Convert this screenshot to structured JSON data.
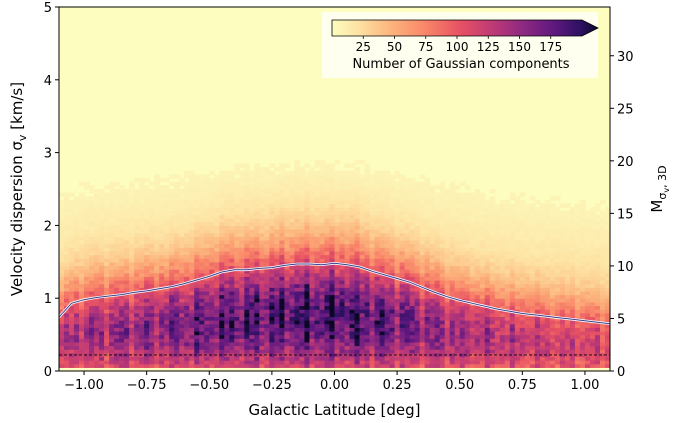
{
  "chart_data": {
    "type": "heatmap",
    "title": "",
    "xlabel": "Galactic Latitude [deg]",
    "ylabel": "Velocity dispersion σ_v [km/s]",
    "ylabel_main": "Velocity dispersion σ",
    "ylabel_sub": "v",
    "ylabel_unit": " [km/s]",
    "y2label": "M_σv,3D",
    "y2label_main": "M",
    "y2label_sub": "σ",
    "y2label_subsub": "v",
    "y2label_sub2": ", 3D",
    "xlim": [
      -1.1,
      1.1
    ],
    "ylim": [
      0,
      5
    ],
    "y2lim": [
      0,
      34.64
    ],
    "xticks": [
      -1.0,
      -0.75,
      -0.5,
      -0.25,
      0.0,
      0.25,
      0.5,
      0.75,
      1.0
    ],
    "xtick_labels": [
      "−1.00",
      "−0.75",
      "−0.50",
      "−0.25",
      "0.00",
      "0.25",
      "0.50",
      "0.75",
      "1.00"
    ],
    "yticks": [
      0,
      1,
      2,
      3,
      4,
      5
    ],
    "ytick_labels": [
      "0",
      "1",
      "2",
      "3",
      "4",
      "5"
    ],
    "y2ticks": [
      0,
      5,
      10,
      15,
      20,
      25,
      30
    ],
    "y2tick_labels": [
      "0",
      "5",
      "10",
      "15",
      "20",
      "25",
      "30"
    ],
    "colormap": "magma_r",
    "colorbar": {
      "label": "Number of Gaussian components",
      "range": [
        0,
        200
      ],
      "ticks": [
        25,
        50,
        75,
        100,
        125,
        150,
        175
      ],
      "tick_labels": [
        "25",
        "50",
        "75",
        "100",
        "125",
        "150",
        "175"
      ],
      "placement": "top-right",
      "extend": "max"
    },
    "series": [
      {
        "type": "line",
        "style": "solid",
        "color": "#ffffff",
        "x": [
          -1.1,
          -1.05,
          -1.0,
          -0.95,
          -0.9,
          -0.85,
          -0.8,
          -0.75,
          -0.7,
          -0.65,
          -0.6,
          -0.55,
          -0.5,
          -0.45,
          -0.4,
          -0.35,
          -0.3,
          -0.25,
          -0.2,
          -0.15,
          -0.1,
          -0.05,
          0.0,
          0.05,
          0.1,
          0.15,
          0.2,
          0.25,
          0.3,
          0.35,
          0.4,
          0.45,
          0.5,
          0.55,
          0.6,
          0.65,
          0.7,
          0.75,
          0.8,
          0.85,
          0.9,
          0.95,
          1.0,
          1.05,
          1.1
        ],
        "y": [
          0.74,
          0.93,
          0.98,
          1.01,
          1.03,
          1.05,
          1.08,
          1.1,
          1.13,
          1.16,
          1.2,
          1.25,
          1.3,
          1.36,
          1.39,
          1.39,
          1.41,
          1.42,
          1.45,
          1.47,
          1.47,
          1.46,
          1.48,
          1.46,
          1.43,
          1.37,
          1.32,
          1.27,
          1.22,
          1.15,
          1.08,
          1.02,
          0.97,
          0.93,
          0.89,
          0.85,
          0.82,
          0.79,
          0.77,
          0.75,
          0.73,
          0.71,
          0.69,
          0.67,
          0.65
        ]
      },
      {
        "type": "line",
        "style": "dashed",
        "color": "#000000",
        "x": [
          -1.1,
          1.1
        ],
        "y": [
          0.22,
          0.22
        ]
      }
    ],
    "grid": false
  }
}
